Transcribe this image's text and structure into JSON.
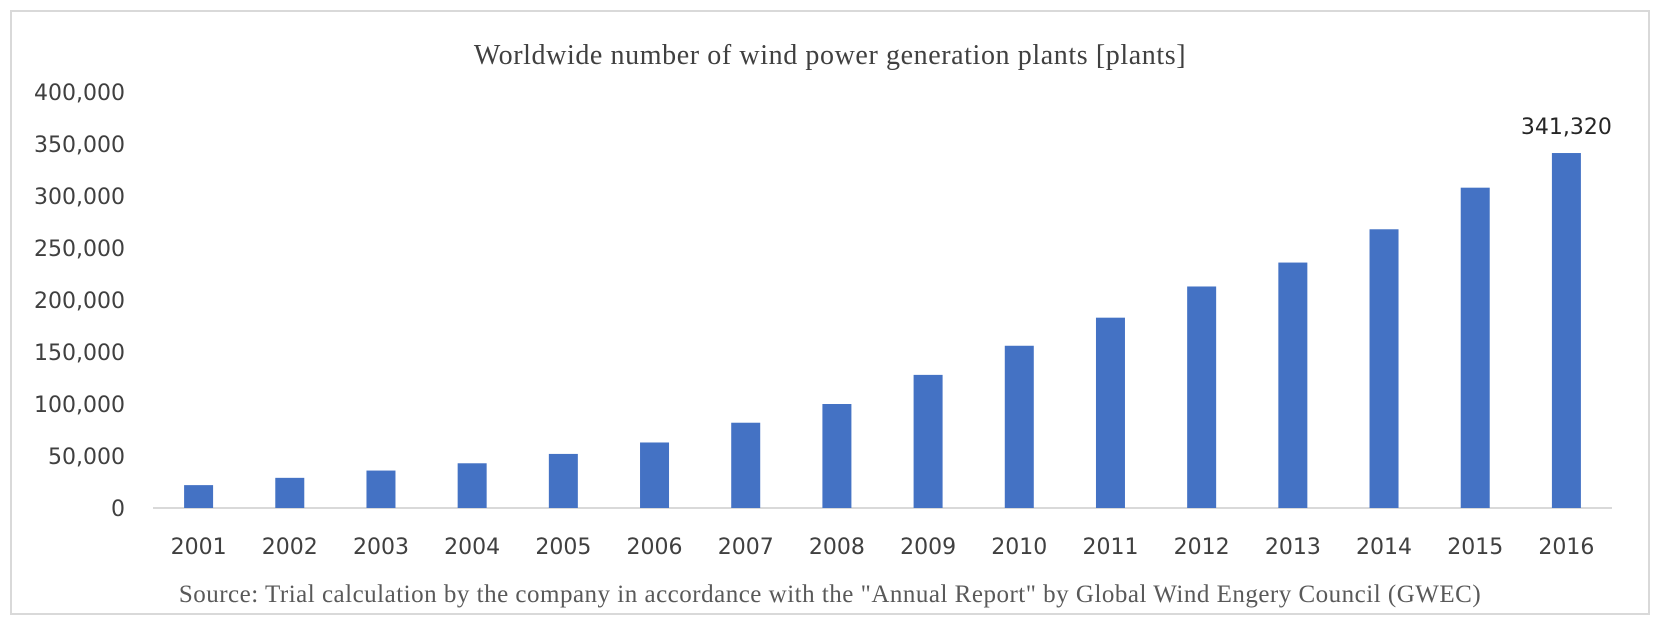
{
  "chart_data": {
    "type": "bar",
    "title": "Worldwide number of wind power generation plants [plants]",
    "categories": [
      "2001",
      "2002",
      "2003",
      "2004",
      "2005",
      "2006",
      "2007",
      "2008",
      "2009",
      "2010",
      "2011",
      "2012",
      "2013",
      "2014",
      "2015",
      "2016"
    ],
    "values": [
      22000,
      29000,
      36000,
      43000,
      52000,
      63000,
      82000,
      100000,
      128000,
      156000,
      183000,
      213000,
      236000,
      268000,
      308000,
      341320
    ],
    "data_labels": [
      {
        "category": "2016",
        "text": "341,320"
      }
    ],
    "ylim": [
      0,
      400000
    ],
    "yticks": [
      "0",
      "50,000",
      "100,000",
      "150,000",
      "200,000",
      "250,000",
      "300,000",
      "350,000",
      "400,000"
    ],
    "ytick_values": [
      0,
      50000,
      100000,
      150000,
      200000,
      250000,
      300000,
      350000,
      400000
    ],
    "xlabel": "",
    "ylabel": "",
    "grid": false,
    "legend": "none",
    "bar_color": "#4472c4",
    "axis_color": "#d9d9d9",
    "source": "Source:  Trial calculation  by  the company  in  accordance  with the \"Annual Report\" by Global Wind Engery Council (GWEC)"
  }
}
